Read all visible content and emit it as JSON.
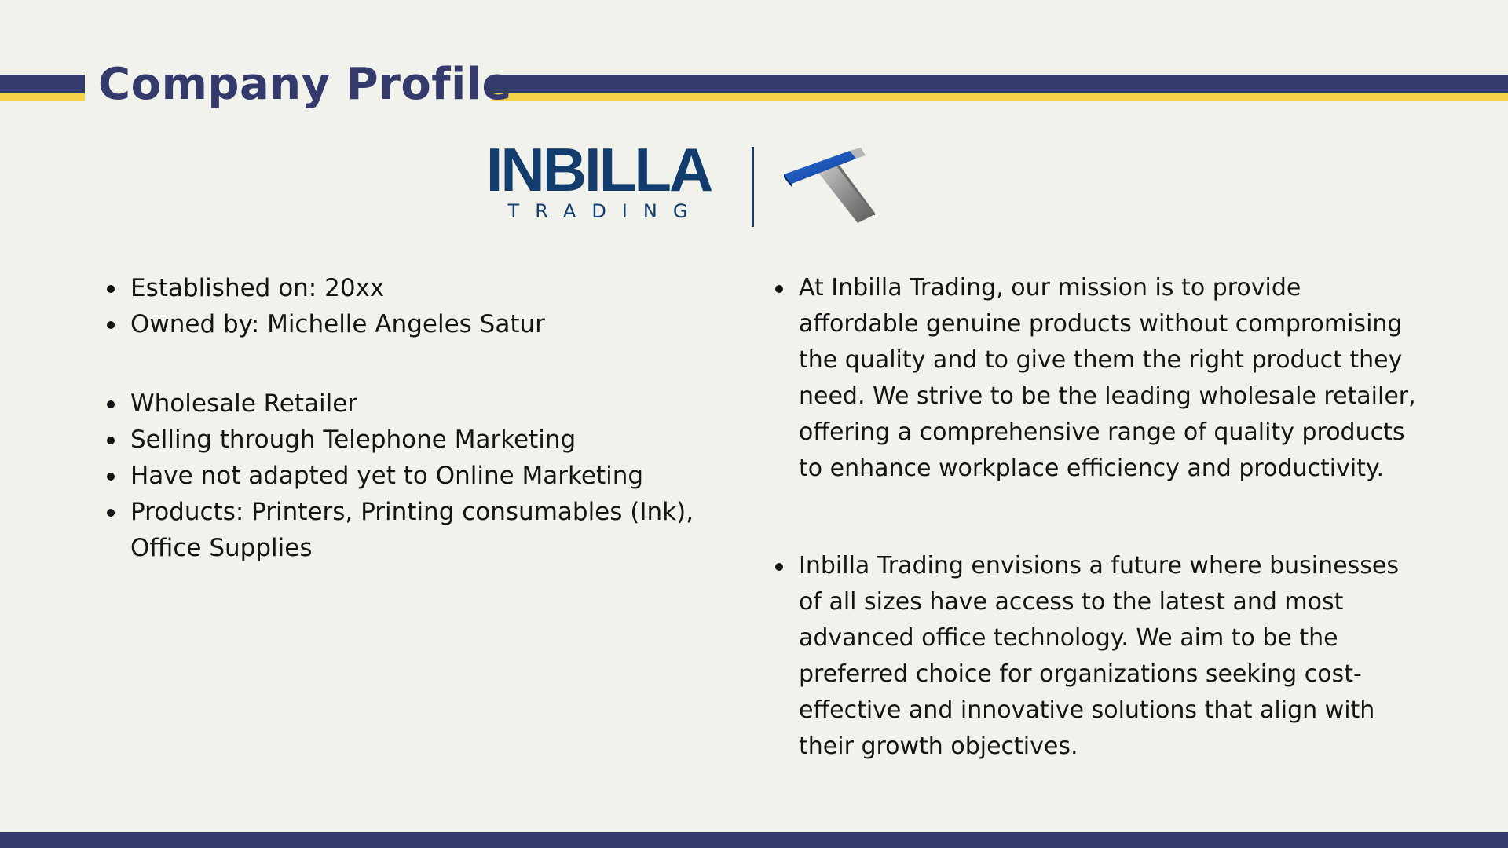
{
  "page": {
    "title": "Company Profile"
  },
  "logo": {
    "name": "INBILLA",
    "subtitle": "TRADING",
    "mark_icon": "t-bar-logo-icon"
  },
  "colors": {
    "navy": "#343a6b",
    "gold": "#f5d24a",
    "logo_blue": "#113c6b",
    "background": "#f2f2ec"
  },
  "facts": {
    "established": "Established on: 20xx",
    "owner": "Owned by: Michelle Angeles Satur"
  },
  "business": {
    "items": [
      "Wholesale Retailer",
      "Selling through Telephone Marketing",
      "Have not adapted yet to Online Marketing",
      "Products: Printers, Printing consumables (Ink), Office Supplies"
    ]
  },
  "mission": "At Inbilla Trading, our mission is to provide affordable genuine products without compromising the quality and to give them the right product they need. We strive to be the leading wholesale retailer, offering a comprehensive range of quality products to enhance workplace efficiency and productivity.",
  "vision": "Inbilla Trading envisions a future where businesses of all sizes have access to the latest and most advanced office technology. We aim to be the preferred choice for organizations seeking cost-effective and innovative solutions that align with their growth objectives."
}
